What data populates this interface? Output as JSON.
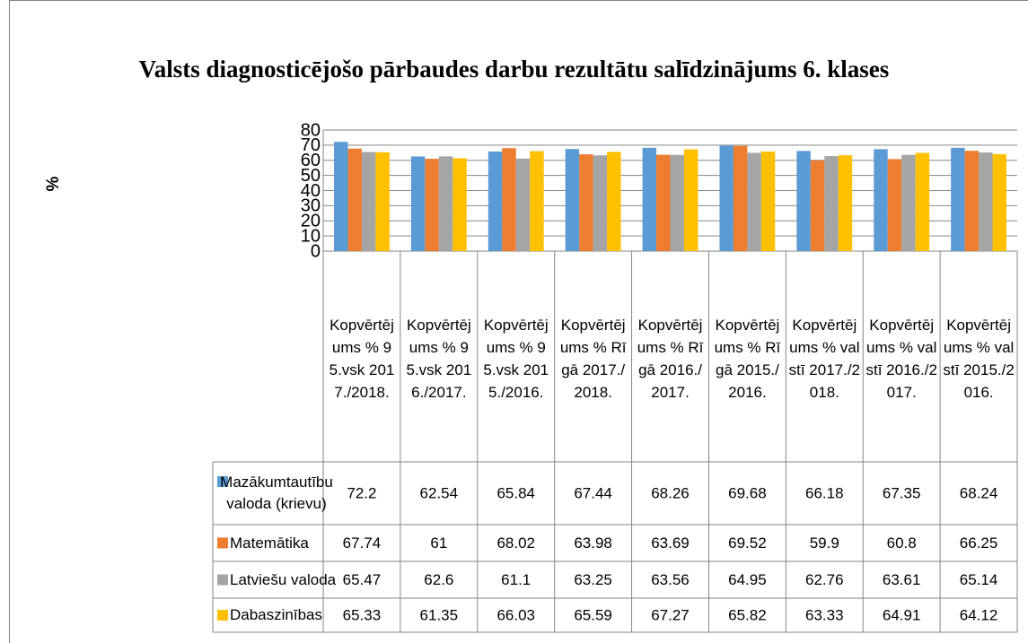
{
  "chart_data": {
    "type": "bar",
    "title": "Valsts diagnosticējošo pārbaudes darbu rezultātu salīdzinājums 6. klases",
    "ylabel": "%",
    "categories": [
      "Kopvērtējums % 95.vsk 2017./2018.",
      "Kopvērtējums % 95.vsk 2016./2017.",
      "Kopvērtējums % 95.vsk 2015./2016.",
      "Kopvērtējums % Rīgā 2017./2018.",
      "Kopvērtējums % Rīgā 2016./2017.",
      "Kopvērtējums % Rīgā 2015./2016.",
      "Kopvērtējums % valstī 2017./2018.",
      "Kopvērtējums % valstī 2016./2017.",
      "Kopvērtējums % valstī 2015./2016."
    ],
    "series": [
      {
        "name": "Mazākumtautību valoda (krievu)",
        "color": "#5b9bd5",
        "values": [
          72.2,
          62.54,
          65.84,
          67.44,
          68.26,
          69.68,
          66.18,
          67.35,
          68.24
        ]
      },
      {
        "name": "Matemātika",
        "color": "#ed7d31",
        "values": [
          67.74,
          61,
          68.02,
          63.98,
          63.69,
          69.52,
          59.9,
          60.8,
          66.25
        ]
      },
      {
        "name": "Latviešu valoda",
        "color": "#a5a5a5",
        "values": [
          65.47,
          62.6,
          61.1,
          63.25,
          63.56,
          64.95,
          62.76,
          63.61,
          65.14
        ]
      },
      {
        "name": "Dabaszinības",
        "color": "#ffc000",
        "values": [
          65.33,
          61.35,
          66.03,
          65.59,
          67.27,
          65.82,
          63.33,
          64.91,
          64.12
        ]
      }
    ],
    "ylim": [
      0,
      80
    ],
    "yticks": [
      0,
      10,
      20,
      30,
      40,
      50,
      60,
      70,
      80
    ],
    "grid": true
  }
}
